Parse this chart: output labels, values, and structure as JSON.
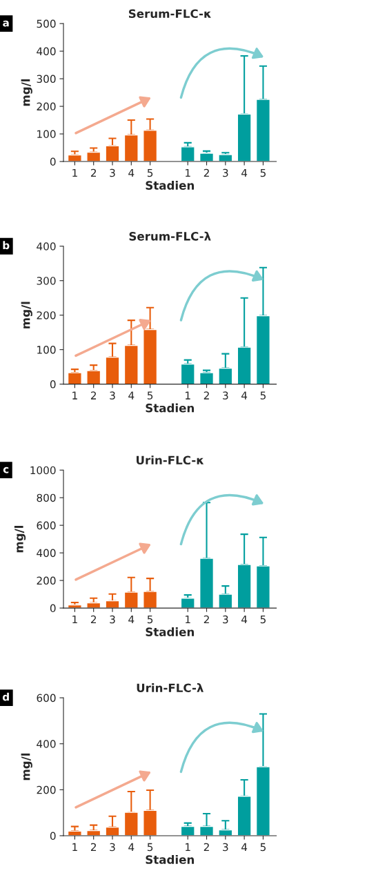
{
  "chart_data": [
    {
      "type": "bar",
      "title": "Serum-FLC-κ",
      "xlabel": "Stadien",
      "ylabel": "mg/l",
      "annotations": [
        "a"
      ],
      "categories": [
        "1",
        "2",
        "3",
        "4",
        "5",
        null,
        "1",
        "2",
        "3",
        "4",
        "5"
      ],
      "ylim": [
        0,
        500
      ],
      "yticks": [
        0,
        100,
        200,
        300,
        400,
        500
      ],
      "grid": false,
      "series": [
        {
          "color": "#e85d0c",
          "values": [
            24,
            34,
            57,
            96,
            113,
            null,
            null,
            null,
            null,
            null,
            null
          ],
          "errors": [
            [
              24,
              37
            ],
            [
              34,
              49
            ],
            [
              57,
              84
            ],
            [
              96,
              150
            ],
            [
              113,
              154
            ],
            null,
            null,
            null,
            null,
            null,
            null
          ]
        },
        {
          "color": "#009e9e",
          "values": [
            null,
            null,
            null,
            null,
            null,
            null,
            53,
            30,
            25,
            172,
            225
          ],
          "errors": [
            null,
            null,
            null,
            null,
            null,
            null,
            [
              53,
              68
            ],
            [
              30,
              38
            ],
            [
              25,
              32
            ],
            [
              172,
              383
            ],
            [
              225,
              346
            ]
          ]
        }
      ]
    },
    {
      "type": "bar",
      "title": "Serum-FLC-λ",
      "xlabel": "Stadien",
      "ylabel": "mg/l",
      "annotations": [
        "b"
      ],
      "categories": [
        "1",
        "2",
        "3",
        "4",
        "5",
        null,
        "1",
        "2",
        "3",
        "4",
        "5"
      ],
      "ylim": [
        0,
        400
      ],
      "yticks": [
        0,
        100,
        200,
        300,
        400
      ],
      "grid": false,
      "series": [
        {
          "color": "#e85d0c",
          "values": [
            33,
            39,
            78,
            112,
            158,
            null,
            null,
            null,
            null,
            null,
            null
          ],
          "errors": [
            [
              33,
              43
            ],
            [
              39,
              55
            ],
            [
              78,
              118
            ],
            [
              112,
              185
            ],
            [
              158,
              222
            ],
            null,
            null,
            null,
            null,
            null,
            null
          ]
        },
        {
          "color": "#009e9e",
          "values": [
            null,
            null,
            null,
            null,
            null,
            null,
            58,
            33,
            46,
            107,
            198
          ],
          "errors": [
            null,
            null,
            null,
            null,
            null,
            null,
            [
              58,
              70
            ],
            [
              33,
              40
            ],
            [
              46,
              88
            ],
            [
              107,
              250
            ],
            [
              198,
              338
            ]
          ]
        }
      ]
    },
    {
      "type": "bar",
      "title": "Urin-FLC-κ",
      "xlabel": "Stadien",
      "ylabel": "mg/l",
      "annotations": [
        "c"
      ],
      "categories": [
        "1",
        "2",
        "3",
        "4",
        "5",
        null,
        "1",
        "2",
        "3",
        "4",
        "5"
      ],
      "ylim": [
        0,
        1000
      ],
      "yticks": [
        0,
        200,
        400,
        600,
        800,
        1000
      ],
      "grid": false,
      "series": [
        {
          "color": "#e85d0c",
          "values": [
            22,
            38,
            52,
            115,
            120,
            null,
            null,
            null,
            null,
            null,
            null
          ],
          "errors": [
            [
              22,
              40
            ],
            [
              38,
              72
            ],
            [
              52,
              102
            ],
            [
              115,
              222
            ],
            [
              120,
              215
            ],
            null,
            null,
            null,
            null,
            null,
            null
          ]
        },
        {
          "color": "#009e9e",
          "values": [
            null,
            null,
            null,
            null,
            null,
            null,
            72,
            360,
            100,
            315,
            305
          ],
          "errors": [
            null,
            null,
            null,
            null,
            null,
            null,
            [
              72,
              95
            ],
            [
              360,
              765
            ],
            [
              100,
              160
            ],
            [
              315,
              535
            ],
            [
              305,
              512
            ]
          ]
        }
      ]
    },
    {
      "type": "bar",
      "title": "Urin-FLC-λ",
      "xlabel": "Stadien",
      "ylabel": "mg/l",
      "annotations": [
        "d"
      ],
      "categories": [
        "1",
        "2",
        "3",
        "4",
        "5",
        null,
        "1",
        "2",
        "3",
        "4",
        "5"
      ],
      "ylim": [
        0,
        600
      ],
      "yticks": [
        0,
        200,
        400,
        600
      ],
      "grid": false,
      "series": [
        {
          "color": "#e85d0c",
          "values": [
            20,
            22,
            37,
            102,
            110,
            null,
            null,
            null,
            null,
            null,
            null
          ],
          "errors": [
            [
              20,
              40
            ],
            [
              22,
              46
            ],
            [
              37,
              85
            ],
            [
              102,
              192
            ],
            [
              110,
              198
            ],
            null,
            null,
            null,
            null,
            null,
            null
          ]
        },
        {
          "color": "#009e9e",
          "values": [
            null,
            null,
            null,
            null,
            null,
            null,
            40,
            40,
            25,
            172,
            300
          ],
          "errors": [
            null,
            null,
            null,
            null,
            null,
            null,
            [
              40,
              55
            ],
            [
              40,
              96
            ],
            [
              25,
              65
            ],
            [
              172,
              243
            ],
            [
              300,
              530
            ]
          ]
        }
      ]
    }
  ]
}
